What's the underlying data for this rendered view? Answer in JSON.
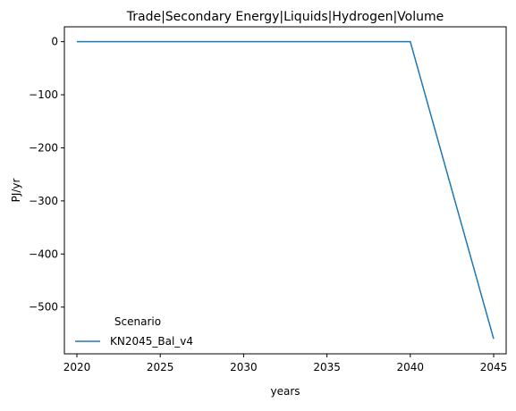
{
  "chart_data": {
    "type": "line",
    "title": "Trade|Secondary Energy|Liquids|Hydrogen|Volume",
    "xlabel": "years",
    "ylabel": "PJ/yr",
    "xlim": [
      2019.25,
      2045.75
    ],
    "ylim": [
      -588,
      28
    ],
    "xticks": [
      2020,
      2025,
      2030,
      2035,
      2040,
      2045
    ],
    "yticks": [
      0,
      -100,
      -200,
      -300,
      -400,
      -500
    ],
    "ytick_labels": [
      "0",
      "−100",
      "−200",
      "−300",
      "−400",
      "−500"
    ],
    "grid": false,
    "legend": {
      "title": "Scenario",
      "placement": "lower-left"
    },
    "series": [
      {
        "name": "KN2045_Bal_v4",
        "color": "#1f77b4",
        "x": [
          2020,
          2025,
          2030,
          2035,
          2040,
          2045
        ],
        "y": [
          0,
          0,
          0,
          0,
          0,
          -560
        ]
      }
    ]
  }
}
